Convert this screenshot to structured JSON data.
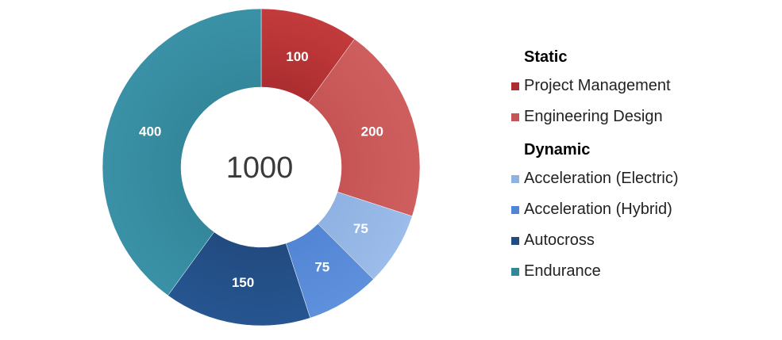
{
  "chart_data": {
    "type": "pie",
    "variant": "donut",
    "center_label": "1000",
    "slices": [
      {
        "label": "Project Management",
        "value": 100,
        "value_label": "100",
        "color": "#ab2d2f",
        "color_light": "#c33b3c",
        "group": "Static"
      },
      {
        "label": "Engineering Design",
        "value": 200,
        "value_label": "200",
        "color": "#c65455",
        "color_light": "#cf5f5e",
        "group": "Static"
      },
      {
        "label": "Acceleration (Electric)",
        "value": 75,
        "value_label": "75",
        "color": "#8fb2e2",
        "color_light": "#9cbcea",
        "group": "Dynamic"
      },
      {
        "label": "Acceleration (Hybrid)",
        "value": 75,
        "value_label": "75",
        "color": "#5285d4",
        "color_light": "#5e90dc",
        "group": "Dynamic"
      },
      {
        "label": "Autocross",
        "value": 150,
        "value_label": "150",
        "color": "#224b80",
        "color_light": "#265590",
        "group": "Dynamic"
      },
      {
        "label": "Endurance",
        "value": 400,
        "value_label": "400",
        "color": "#34879b",
        "color_light": "#3a91a6",
        "group": "Dynamic"
      }
    ],
    "legend_position": "right",
    "legend": {
      "groups": [
        {
          "title": "Static",
          "items": [
            {
              "label": "Project Management",
              "color": "#ab2d2f"
            },
            {
              "label": "Engineering Design",
              "color": "#c65455"
            }
          ]
        },
        {
          "title": "Dynamic",
          "items": [
            {
              "label": "Acceleration (Electric)",
              "color": "#8fb2e2"
            },
            {
              "label": "Acceleration (Hybrid)",
              "color": "#5285d4"
            },
            {
              "label": "Autocross",
              "color": "#224b80"
            },
            {
              "label": "Endurance",
              "color": "#34879b"
            }
          ]
        }
      ]
    },
    "start_angle_deg": 0,
    "direction": "clockwise"
  }
}
